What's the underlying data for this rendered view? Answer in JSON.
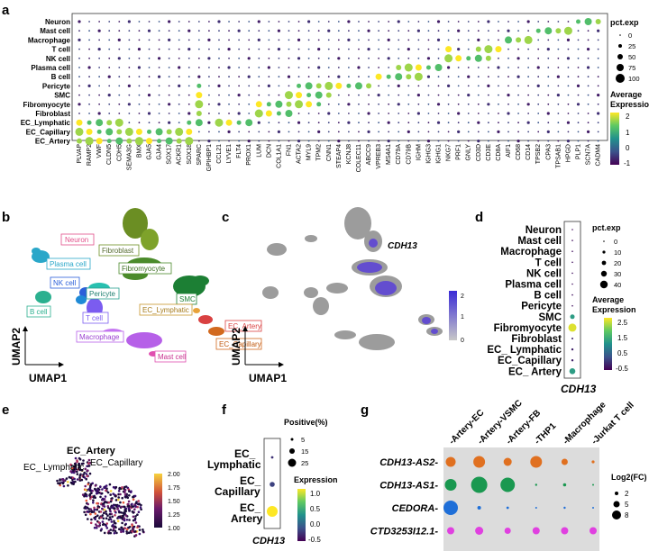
{
  "panels": {
    "a": {
      "letter": "a",
      "rows": [
        "Neuron",
        "Mast cell",
        "Macrophage",
        "T cell",
        "NK cell",
        "Plasma cell",
        "B cell",
        "Pericyte",
        "SMC",
        "Fibromyocyte",
        "Fibroblast",
        "EC_Lymphatic",
        "EC_Capillary",
        "EC_Artery"
      ],
      "genes": [
        "PLVAP",
        "RAMP2",
        "VWF",
        "CLDN5",
        "CDH5",
        "SEMA3G",
        "BMX",
        "GJA5",
        "GJA4",
        "SOX17",
        "ACKR1",
        "SOX18",
        "SPARC",
        "GPIHBP1",
        "CCL21",
        "LYVE1",
        "FLT4",
        "PROX1",
        "LUM",
        "DCN",
        "COL1A1",
        "FN1",
        "ACTA2",
        "MYL9",
        "TPM2",
        "CNN1",
        "STEAP4",
        "KCNJ8",
        "COLEC11",
        "ABCC9",
        "VPREB3",
        "MS4A1",
        "CD79A",
        "CD79B",
        "IGHM",
        "IGHG3",
        "IGHG1",
        "NKG7",
        "PRF1",
        "GNLY",
        "CD3D",
        "CD3E",
        "CD8A",
        "AIF1",
        "CD68",
        "CD14",
        "TPSB2",
        "CPA3",
        "TPSAB1",
        "HPGD",
        "PLP1",
        "SCN7A",
        "CADM4"
      ],
      "legend": {
        "pct_title": "pct.exp",
        "pct_values": [
          "0",
          "25",
          "50",
          "75",
          "100"
        ],
        "expr_title": "Average Expression",
        "expr_ticks": [
          "2",
          "1",
          "0",
          "-1"
        ]
      }
    },
    "b": {
      "letter": "b",
      "xlabel": "UMAP1",
      "ylabel": "UMAP2",
      "labels": {
        "neuron": "Neuron",
        "plasma": "Plasma cell",
        "nk": "NK cell",
        "bcell": "B cell",
        "pericyte": "Pericyte",
        "tcell": "T cell",
        "fibroblast": "Fibroblast",
        "fibromyocyte": "Fibromyocyte",
        "smc": "SMC",
        "eclymph": "EC_Lymphatic",
        "ecartery": "EC_Artery",
        "eccap": "EC_Capillary",
        "macrophage": "Macrophage",
        "mast": "Mast cell"
      }
    },
    "c": {
      "letter": "c",
      "gene": "CDH13",
      "xlabel": "UMAP1",
      "ylabel": "UMAP2",
      "scale_ticks": [
        "2",
        "1",
        "0"
      ]
    },
    "d": {
      "letter": "d",
      "rows": [
        "Neuron",
        "Mast cell",
        "Macrophage",
        "T cell",
        "NK cell",
        "Plasma cell",
        "B cell",
        "Pericyte",
        "SMC",
        "Fibromyocyte",
        "Fibroblast",
        "EC_ Lymphatic",
        "EC_Capillary",
        "EC_ Artery"
      ],
      "gene": "CDH13",
      "pct_title": "pct.exp",
      "pct_values": [
        "0",
        "10",
        "20",
        "30",
        "40"
      ],
      "expr_title": "Average Expression",
      "expr_ticks": [
        "2.5",
        "1.5",
        "0.5",
        "-0.5"
      ]
    },
    "e": {
      "letter": "e",
      "labels": {
        "artery": "EC_Artery",
        "lymph": "EC_ Lymphatic",
        "cap": "EC_Capillary"
      },
      "scale_ticks": [
        "2.00",
        "1.75",
        "1.50",
        "1.25",
        "1.00"
      ]
    },
    "f": {
      "letter": "f",
      "rows": [
        "EC_ Lymphatic",
        "EC_ Capillary",
        "EC_ Artery"
      ],
      "gene": "CDH13",
      "pos_title": "Positive(%)",
      "pos_values": [
        "5",
        "15",
        "25"
      ],
      "expr_title": "Expression",
      "expr_ticks": [
        "1.0",
        "0.5",
        "0.0",
        "-0.5"
      ]
    },
    "g": {
      "letter": "g",
      "columns": [
        "-Artery-EC",
        "-Artery-VSMC",
        "-Artery-FB",
        "-THP1",
        "-Macrophage",
        "-Jurkat T cell"
      ],
      "rows": [
        "CDH13-AS2",
        "CDH13-AS1",
        "CEDORA",
        "CTD3253I12.1"
      ],
      "legend_title": "Log2(FC)",
      "legend_values": [
        "2",
        "5",
        "8"
      ]
    }
  },
  "colors": {
    "viridis": [
      "#440154",
      "#3b528b",
      "#21918c",
      "#5ec962",
      "#fde725"
    ],
    "gray_blue": [
      "#c8c8c8",
      "#3a2bd6"
    ],
    "inferno": [
      "#000004",
      "#3b0f70",
      "#8c2981",
      "#de4968",
      "#fe9f6d",
      "#fcfdbf"
    ]
  }
}
